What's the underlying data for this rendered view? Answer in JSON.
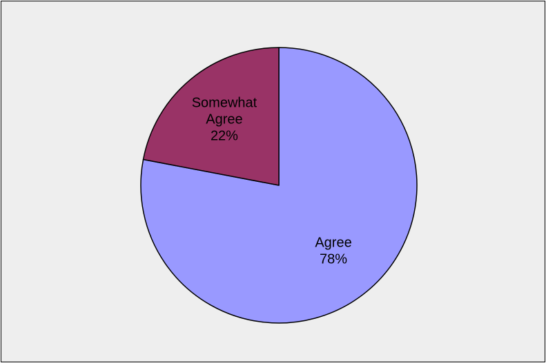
{
  "chart_data": {
    "type": "pie",
    "title": "",
    "slices": [
      {
        "label": "Agree",
        "value": 78,
        "percent_label": "78%",
        "color": "#9999ff"
      },
      {
        "label": "Somewhat Agree",
        "value": 22,
        "percent_label": "22%",
        "color": "#993366"
      }
    ],
    "border_color": "#000000",
    "background_color": "#eeeeee",
    "legend": "none",
    "data_labels": "inside"
  }
}
